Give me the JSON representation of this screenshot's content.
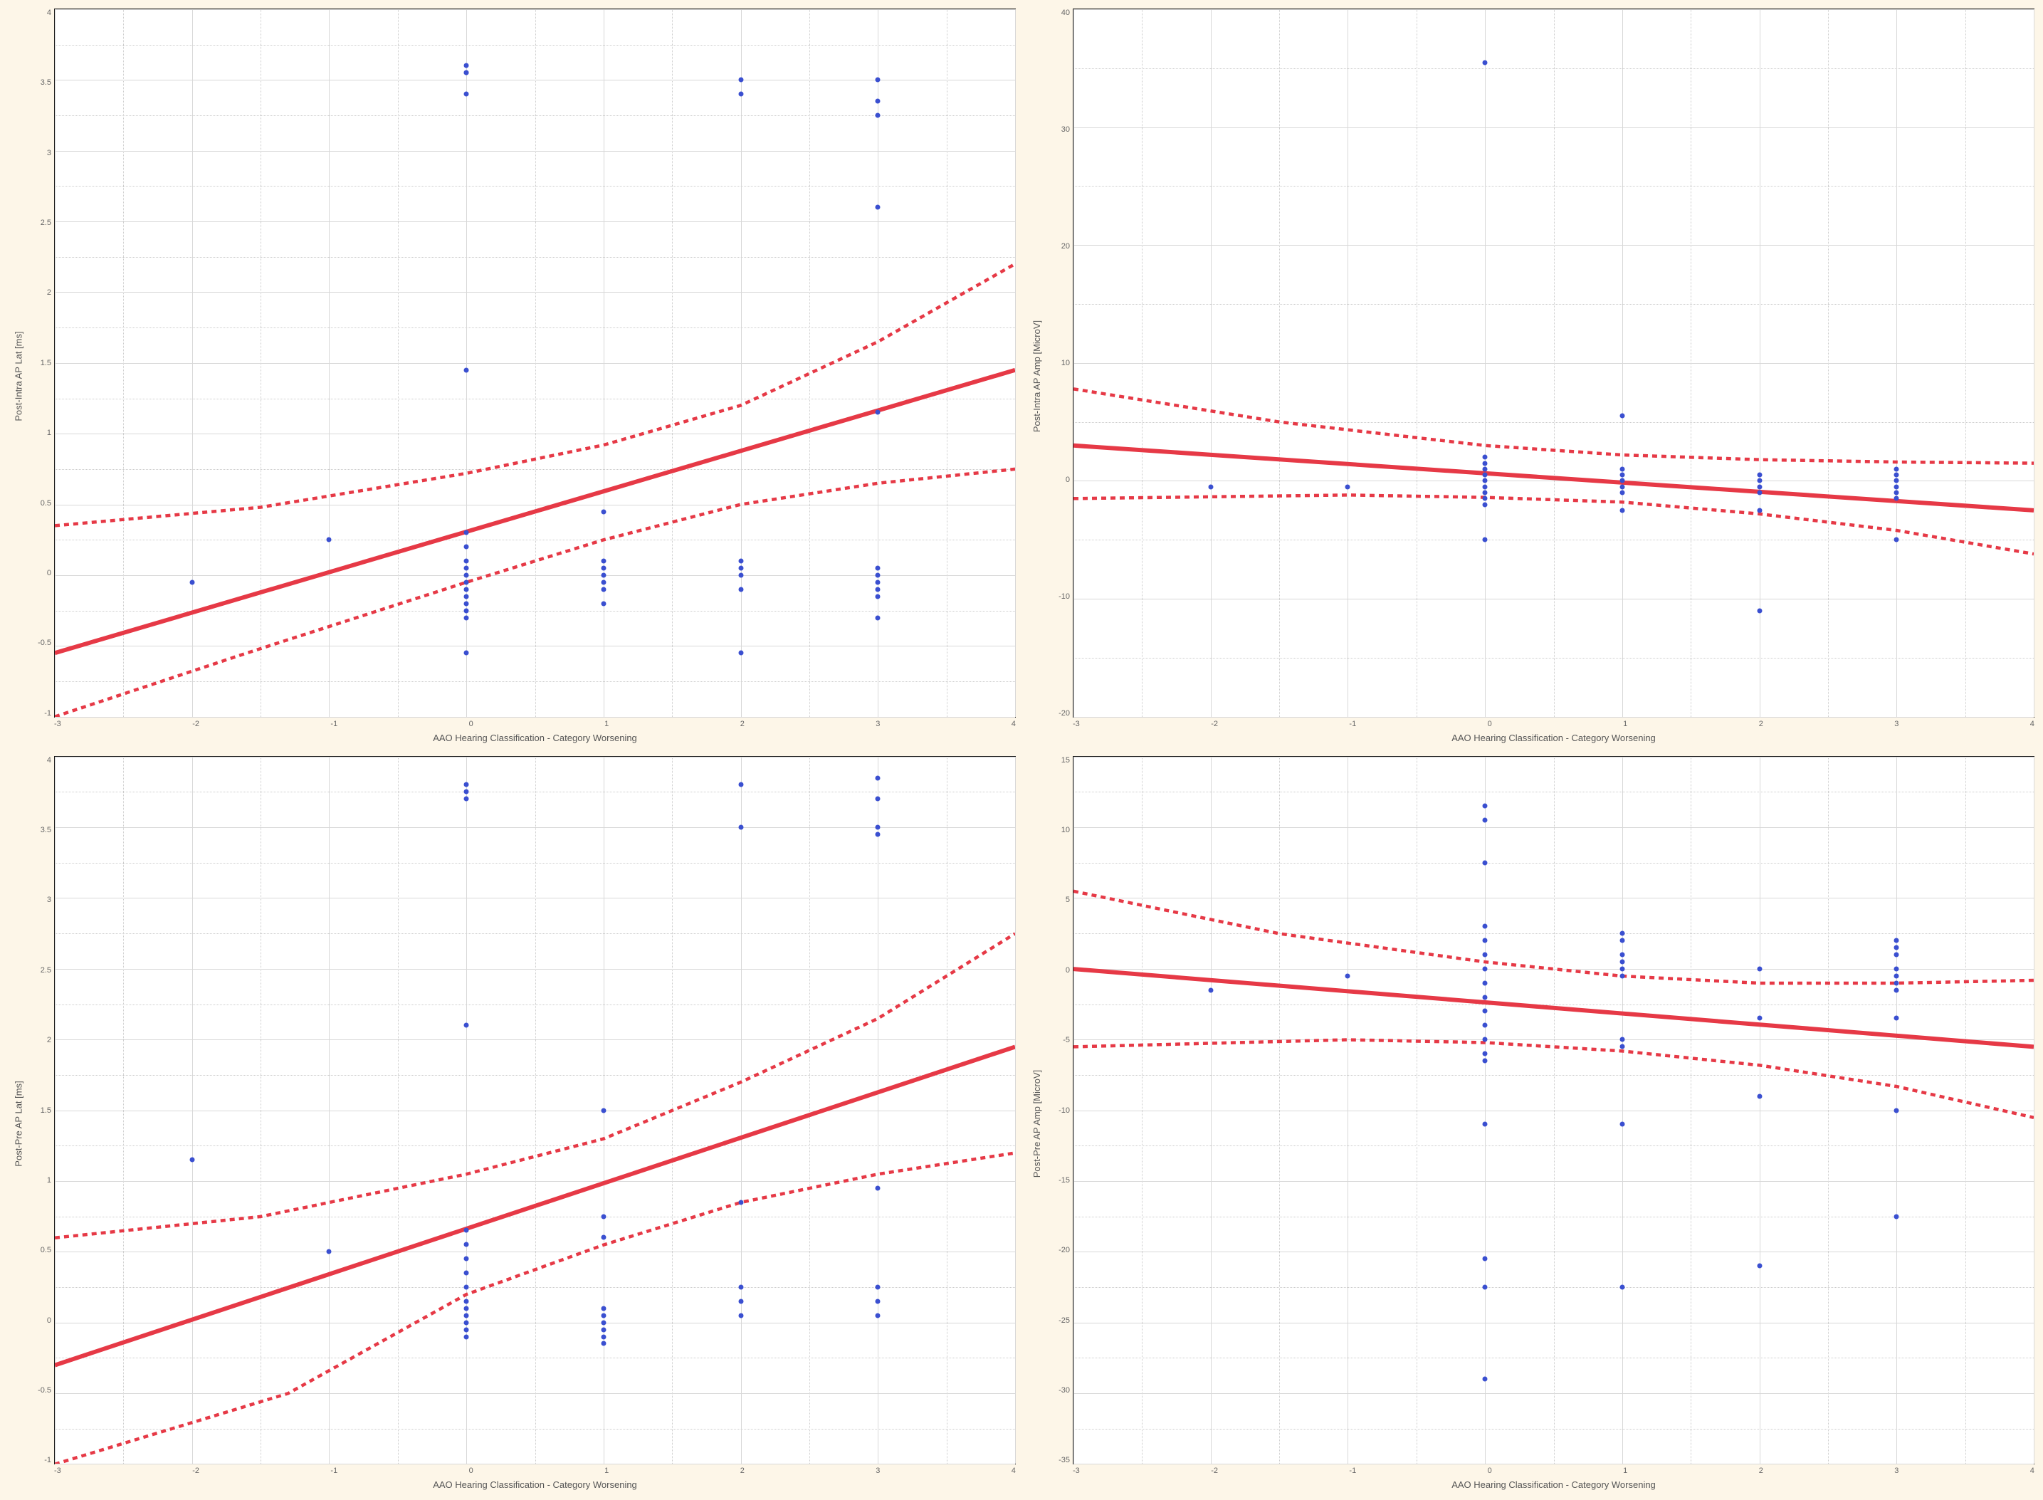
{
  "xlabel": "AAO Hearing Classification - Category Worsening",
  "label_fontsize": 13,
  "tick_fontsize": 11,
  "marker_color": "#3a4fd0",
  "marker_size": 7,
  "reg_line_color": "#e63946",
  "reg_line_width": 2,
  "ci_dash_color": "#e63946",
  "ci_dash_width": 1.5,
  "ci_dash_pattern": "7 6",
  "grid_major_color": "#d8d8d8",
  "grid_minor_color": "#cccccc",
  "axis_color": "#1a1a1a",
  "plot_bg": "#ffffff",
  "figure_bg": "#fdf6e8",
  "panel_aspect": "wide",
  "panels": [
    {
      "id": "top_left",
      "type": "scatter-regression",
      "ylabel": "Post-Intra AP Lat [ms]",
      "xlim": [
        -3,
        4
      ],
      "ylim": [
        -1.0,
        4.0
      ],
      "xticks": [
        -3,
        -2,
        -1,
        0,
        1,
        2,
        3,
        4
      ],
      "yticks": [
        -1.0,
        -0.5,
        0.0,
        0.5,
        1.0,
        1.5,
        2.0,
        2.5,
        3.0,
        3.5,
        4.0
      ],
      "reg_line": {
        "x1": -3,
        "y1": -0.55,
        "x2": 4,
        "y2": 1.45
      },
      "ci_lower": [
        [
          -3,
          -1.0
        ],
        [
          -1.6,
          -0.55
        ],
        [
          0,
          -0.05
        ],
        [
          1,
          0.25
        ],
        [
          2,
          0.5
        ],
        [
          3,
          0.65
        ],
        [
          4,
          0.75
        ]
      ],
      "ci_upper": [
        [
          -3,
          0.35
        ],
        [
          -1.5,
          0.48
        ],
        [
          0,
          0.72
        ],
        [
          1,
          0.92
        ],
        [
          2,
          1.2
        ],
        [
          3,
          1.65
        ],
        [
          4,
          2.2
        ]
      ],
      "points": [
        [
          -2,
          -0.05
        ],
        [
          -1,
          0.25
        ],
        [
          0,
          3.6
        ],
        [
          0,
          3.55
        ],
        [
          0,
          3.55
        ],
        [
          0,
          3.4
        ],
        [
          0,
          1.45
        ],
        [
          0,
          0.3
        ],
        [
          0,
          0.2
        ],
        [
          0,
          0.1
        ],
        [
          0,
          0.05
        ],
        [
          0,
          0.0
        ],
        [
          0,
          -0.05
        ],
        [
          0,
          -0.1
        ],
        [
          0,
          -0.15
        ],
        [
          0,
          -0.2
        ],
        [
          0,
          -0.25
        ],
        [
          0,
          -0.3
        ],
        [
          0,
          -0.55
        ],
        [
          1,
          0.45
        ],
        [
          1,
          0.1
        ],
        [
          1,
          0.05
        ],
        [
          1,
          0.0
        ],
        [
          1,
          -0.05
        ],
        [
          1,
          -0.1
        ],
        [
          1,
          -0.2
        ],
        [
          2,
          3.5
        ],
        [
          2,
          3.4
        ],
        [
          2,
          0.1
        ],
        [
          2,
          0.05
        ],
        [
          2,
          0.0
        ],
        [
          2,
          -0.1
        ],
        [
          2,
          -0.55
        ],
        [
          3,
          3.5
        ],
        [
          3,
          3.35
        ],
        [
          3,
          3.25
        ],
        [
          3,
          2.6
        ],
        [
          3,
          1.15
        ],
        [
          3,
          0.05
        ],
        [
          3,
          0.0
        ],
        [
          3,
          -0.05
        ],
        [
          3,
          -0.1
        ],
        [
          3,
          -0.15
        ],
        [
          3,
          -0.3
        ]
      ]
    },
    {
      "id": "top_right",
      "type": "scatter-regression",
      "ylabel": "Post-Intra AP Amp [MicroV]",
      "xlim": [
        -3,
        4
      ],
      "ylim": [
        -20,
        40
      ],
      "xticks": [
        -3,
        -2,
        -1,
        0,
        1,
        2,
        3,
        4
      ],
      "yticks": [
        -20,
        -10,
        0,
        10,
        20,
        30,
        40
      ],
      "reg_line": {
        "x1": -3,
        "y1": 3.0,
        "x2": 4,
        "y2": -2.5
      },
      "ci_lower": [
        [
          -3,
          -1.5
        ],
        [
          -1,
          -1.2
        ],
        [
          0,
          -1.4
        ],
        [
          1,
          -1.8
        ],
        [
          2,
          -2.8
        ],
        [
          3,
          -4.2
        ],
        [
          4,
          -6.2
        ]
      ],
      "ci_upper": [
        [
          -3,
          7.8
        ],
        [
          -1.5,
          5.0
        ],
        [
          0,
          3.0
        ],
        [
          1,
          2.2
        ],
        [
          2,
          1.8
        ],
        [
          3,
          1.6
        ],
        [
          4,
          1.5
        ]
      ],
      "points": [
        [
          -2,
          -0.5
        ],
        [
          -1,
          -0.5
        ],
        [
          0,
          35.5
        ],
        [
          0,
          2.0
        ],
        [
          0,
          1.5
        ],
        [
          0,
          1.0
        ],
        [
          0,
          0.5
        ],
        [
          0,
          0.0
        ],
        [
          0,
          -0.5
        ],
        [
          0,
          -1.0
        ],
        [
          0,
          -1.5
        ],
        [
          0,
          -2.0
        ],
        [
          0,
          -5.0
        ],
        [
          1,
          5.5
        ],
        [
          1,
          1.0
        ],
        [
          1,
          0.5
        ],
        [
          1,
          0.0
        ],
        [
          1,
          -0.5
        ],
        [
          1,
          -1.0
        ],
        [
          1,
          -2.5
        ],
        [
          2,
          0.5
        ],
        [
          2,
          0.0
        ],
        [
          2,
          -0.5
        ],
        [
          2,
          -1.0
        ],
        [
          2,
          -2.5
        ],
        [
          2,
          -11.0
        ],
        [
          3,
          1.0
        ],
        [
          3,
          0.5
        ],
        [
          3,
          0.0
        ],
        [
          3,
          -0.5
        ],
        [
          3,
          -1.0
        ],
        [
          3,
          -1.5
        ],
        [
          3,
          -5.0
        ]
      ]
    },
    {
      "id": "bottom_left",
      "type": "scatter-regression",
      "ylabel": "Post-Pre AP Lat [ms]",
      "xlim": [
        -3,
        4
      ],
      "ylim": [
        -1.0,
        4.0
      ],
      "xticks": [
        -3,
        -2,
        -1,
        0,
        1,
        2,
        3,
        4
      ],
      "yticks": [
        -1.0,
        -0.5,
        0.0,
        0.5,
        1.0,
        1.5,
        2.0,
        2.5,
        3.0,
        3.5,
        4.0
      ],
      "reg_line": {
        "x1": -3,
        "y1": -0.3,
        "x2": 4,
        "y2": 1.95
      },
      "ci_lower": [
        [
          -3,
          -1.0
        ],
        [
          -1.3,
          -0.5
        ],
        [
          0,
          0.2
        ],
        [
          1,
          0.55
        ],
        [
          2,
          0.85
        ],
        [
          3,
          1.05
        ],
        [
          4,
          1.2
        ]
      ],
      "ci_upper": [
        [
          -3,
          0.6
        ],
        [
          -1.5,
          0.75
        ],
        [
          0,
          1.05
        ],
        [
          1,
          1.3
        ],
        [
          2,
          1.7
        ],
        [
          3,
          2.15
        ],
        [
          4,
          2.75
        ]
      ],
      "points": [
        [
          -2,
          1.15
        ],
        [
          -1,
          0.5
        ],
        [
          0,
          3.8
        ],
        [
          0,
          3.75
        ],
        [
          0,
          3.7
        ],
        [
          0,
          2.1
        ],
        [
          0,
          0.65
        ],
        [
          0,
          0.55
        ],
        [
          0,
          0.45
        ],
        [
          0,
          0.35
        ],
        [
          0,
          0.25
        ],
        [
          0,
          0.15
        ],
        [
          0,
          0.1
        ],
        [
          0,
          0.05
        ],
        [
          0,
          0.0
        ],
        [
          0,
          -0.05
        ],
        [
          0,
          -0.1
        ],
        [
          1,
          1.5
        ],
        [
          1,
          0.75
        ],
        [
          1,
          0.6
        ],
        [
          1,
          0.1
        ],
        [
          1,
          0.05
        ],
        [
          1,
          0.0
        ],
        [
          1,
          -0.05
        ],
        [
          1,
          -0.1
        ],
        [
          1,
          -0.15
        ],
        [
          2,
          3.8
        ],
        [
          2,
          3.5
        ],
        [
          2,
          0.85
        ],
        [
          2,
          0.25
        ],
        [
          2,
          0.15
        ],
        [
          2,
          0.05
        ],
        [
          3,
          3.85
        ],
        [
          3,
          3.7
        ],
        [
          3,
          3.5
        ],
        [
          3,
          3.45
        ],
        [
          3,
          0.95
        ],
        [
          3,
          0.25
        ],
        [
          3,
          0.15
        ],
        [
          3,
          0.05
        ]
      ]
    },
    {
      "id": "bottom_right",
      "type": "scatter-regression",
      "ylabel": "Post-Pre AP Amp [MicroV]",
      "xlim": [
        -3,
        4
      ],
      "ylim": [
        -35,
        15
      ],
      "xticks": [
        -3,
        -2,
        -1,
        0,
        1,
        2,
        3,
        4
      ],
      "yticks": [
        -35,
        -30,
        -25,
        -20,
        -15,
        -10,
        -5,
        0,
        5,
        10,
        15
      ],
      "reg_line": {
        "x1": -3,
        "y1": 0.0,
        "x2": 4,
        "y2": -5.5
      },
      "ci_lower": [
        [
          -3,
          -5.5
        ],
        [
          -1,
          -5.0
        ],
        [
          0,
          -5.2
        ],
        [
          1,
          -5.8
        ],
        [
          2,
          -6.8
        ],
        [
          3,
          -8.3
        ],
        [
          4,
          -10.5
        ]
      ],
      "ci_upper": [
        [
          -3,
          5.5
        ],
        [
          -1.5,
          2.5
        ],
        [
          0,
          0.5
        ],
        [
          1,
          -0.5
        ],
        [
          2,
          -1.0
        ],
        [
          3,
          -1.0
        ],
        [
          4,
          -0.8
        ]
      ],
      "points": [
        [
          -2,
          -1.5
        ],
        [
          -1,
          -0.5
        ],
        [
          0,
          11.5
        ],
        [
          0,
          10.5
        ],
        [
          0,
          7.5
        ],
        [
          0,
          3.0
        ],
        [
          0,
          2.0
        ],
        [
          0,
          1.0
        ],
        [
          0,
          0.0
        ],
        [
          0,
          -1.0
        ],
        [
          0,
          -2.0
        ],
        [
          0,
          -3.0
        ],
        [
          0,
          -4.0
        ],
        [
          0,
          -5.0
        ],
        [
          0,
          -6.0
        ],
        [
          0,
          -6.5
        ],
        [
          0,
          -11.0
        ],
        [
          0,
          -20.5
        ],
        [
          0,
          -22.5
        ],
        [
          0,
          -29.0
        ],
        [
          1,
          2.5
        ],
        [
          1,
          2.0
        ],
        [
          1,
          1.0
        ],
        [
          1,
          0.5
        ],
        [
          1,
          0.0
        ],
        [
          1,
          -0.5
        ],
        [
          1,
          -5.0
        ],
        [
          1,
          -5.5
        ],
        [
          1,
          -11.0
        ],
        [
          1,
          -22.5
        ],
        [
          2,
          0.0
        ],
        [
          2,
          -3.5
        ],
        [
          2,
          -9.0
        ],
        [
          2,
          -21.0
        ],
        [
          3,
          2.0
        ],
        [
          3,
          1.5
        ],
        [
          3,
          1.0
        ],
        [
          3,
          0.0
        ],
        [
          3,
          -0.5
        ],
        [
          3,
          -1.0
        ],
        [
          3,
          -1.5
        ],
        [
          3,
          -3.5
        ],
        [
          3,
          -10.0
        ],
        [
          3,
          -17.5
        ]
      ]
    }
  ]
}
